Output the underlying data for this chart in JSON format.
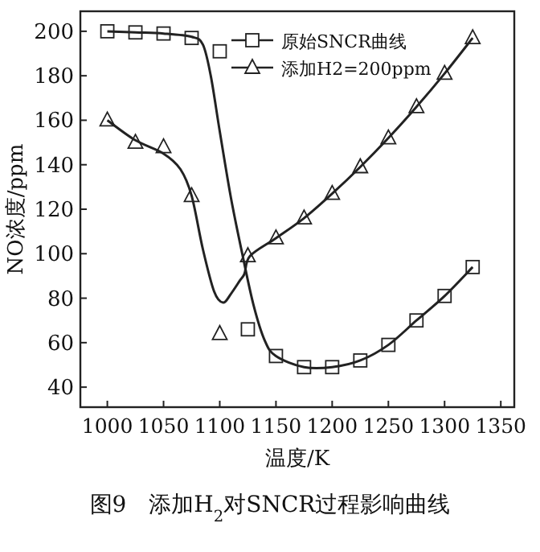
{
  "chart_data": {
    "type": "scatter",
    "xlabel": "温度/K",
    "ylabel": "NO浓度/ppm",
    "annotations": [
      "图9　添加H$_{2}$对SNCR过程影响曲线"
    ],
    "xlim": [
      976,
      1362
    ],
    "ylim": [
      31,
      209
    ],
    "xticks": [
      1000,
      1050,
      1100,
      1150,
      1200,
      1250,
      1300,
      1350
    ],
    "yticks": [
      40,
      60,
      80,
      100,
      120,
      140,
      160,
      180,
      200
    ],
    "legend": "top right",
    "grid": false,
    "series": [
      {
        "name": "原始SNCR曲线",
        "marker": "square",
        "color": "#222222",
        "x": [
          1000,
          1025,
          1050,
          1075,
          1100,
          1125,
          1150,
          1175,
          1200,
          1225,
          1250,
          1275,
          1300,
          1325
        ],
        "values": [
          200,
          199.5,
          199,
          197,
          191,
          66,
          54,
          49,
          49,
          52,
          59,
          70,
          81,
          94
        ]
      },
      {
        "name": "添加H2=200ppm",
        "marker": "triangle",
        "color": "#222222",
        "x": [
          1000,
          1025,
          1050,
          1075,
          1100,
          1125,
          1150,
          1175,
          1200,
          1225,
          1250,
          1275,
          1300,
          1325
        ],
        "values": [
          160,
          150,
          148,
          126,
          64,
          99,
          107,
          116,
          127,
          139,
          152,
          166,
          181,
          197
        ]
      },
      {
        "type": "line",
        "marker": "none",
        "color": "#222222",
        "x": [
          1000,
          1025,
          1050,
          1075,
          1085,
          1092,
          1100,
          1110,
          1120,
          1130,
          1140,
          1150,
          1175,
          1200,
          1225,
          1250,
          1275,
          1300,
          1325
        ],
        "values": [
          200,
          199.5,
          199,
          197.5,
          194,
          180,
          155,
          125,
          100,
          77,
          61,
          54,
          49,
          49,
          52,
          59,
          70,
          81,
          94
        ]
      },
      {
        "type": "line",
        "marker": "none",
        "color": "#222222",
        "x": [
          1000,
          1025,
          1050,
          1065,
          1075,
          1085,
          1095,
          1103,
          1110,
          1118,
          1122,
          1127,
          1150,
          1175,
          1200,
          1225,
          1250,
          1275,
          1300,
          1325
        ],
        "values": [
          160,
          151,
          145,
          138,
          126,
          102,
          83,
          78,
          82,
          88,
          91,
          99,
          107,
          116,
          127,
          139,
          152,
          166,
          181,
          197
        ]
      }
    ]
  }
}
